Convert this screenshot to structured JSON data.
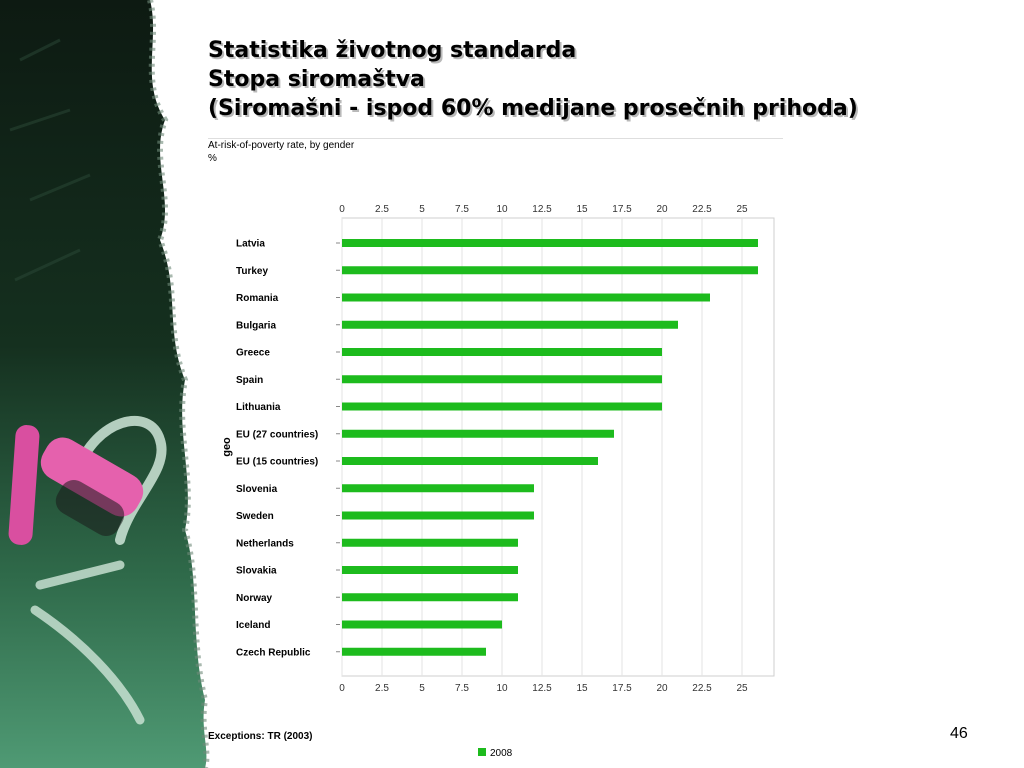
{
  "slide": {
    "title_lines": [
      "Statistika životnog standarda",
      "Stopa siromaštva",
      "(Siromašni - ispod 60% medijane prosečnih prihoda)"
    ],
    "footnote": "Exceptions: TR (2003)",
    "page_number": "46"
  },
  "chart_data": {
    "type": "bar",
    "orientation": "horizontal",
    "title": "At-risk-of-poverty rate, by gender",
    "unit": "%",
    "ylabel": "geo",
    "xlabel": "",
    "xlim": [
      0,
      27
    ],
    "xticks": [
      0,
      2.5,
      5,
      7.5,
      10,
      12.5,
      15,
      17.5,
      20,
      22.5,
      25
    ],
    "xtick_labels": [
      "0",
      "2.5",
      "5",
      "7.5",
      "10",
      "12.5",
      "15",
      "17.5",
      "20",
      "22.5",
      "25"
    ],
    "grid": true,
    "legend_position": "bottom",
    "categories": [
      "Latvia",
      "Turkey",
      "Romania",
      "Bulgaria",
      "Greece",
      "Spain",
      "Lithuania",
      "EU (27 countries)",
      "EU (15 countries)",
      "Slovenia",
      "Sweden",
      "Netherlands",
      "Slovakia",
      "Norway",
      "Iceland",
      "Czech Republic"
    ],
    "series": [
      {
        "name": "2008",
        "color": "#1dbb1d",
        "values": [
          26,
          26,
          23,
          21,
          20,
          20,
          20,
          17,
          16,
          12,
          12,
          11,
          11,
          11,
          10,
          9
        ]
      }
    ]
  }
}
